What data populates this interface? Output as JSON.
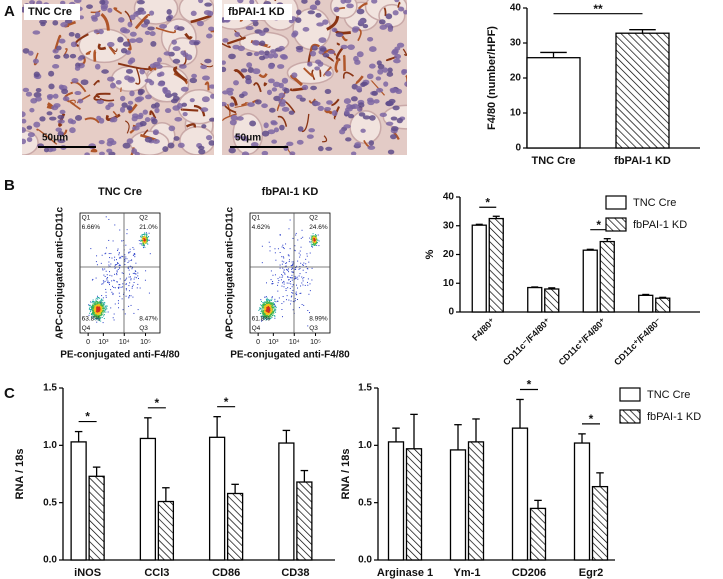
{
  "panels": [
    "A",
    "B",
    "C"
  ],
  "micrographs": [
    {
      "label": "TNC Cre",
      "scale_bar": "50μm"
    },
    {
      "label": "fbPAI-1 KD",
      "scale_bar": "50μm"
    }
  ],
  "chart_data": [
    {
      "type": "bar",
      "ylabel": "F4/80 (number/HPF)",
      "categories": [
        "TNC Cre",
        "fbPAI-1 KD"
      ],
      "values": [
        25.8,
        32.8
      ],
      "errors": [
        1.5,
        1.0
      ],
      "fills": [
        "#ffffff",
        "hatch"
      ],
      "ylim": [
        0,
        40
      ],
      "yticks": [
        0,
        10,
        20,
        30,
        40
      ],
      "significance": [
        {
          "text": "**",
          "categories": [
            "TNC Cre",
            "fbPAI-1 KD"
          ]
        }
      ]
    },
    {
      "type": "flow-density",
      "title": "TNC Cre",
      "xlabel": "PE-conjugated anti-F4/80",
      "ylabel": "APC-conjugated anti-CD11c",
      "xscale": "biexponential",
      "xlim": [
        -400,
        480000
      ],
      "xticks": [
        0,
        {
          "value": 1000,
          "label": "10³"
        },
        {
          "value": 10000,
          "label": "10⁴"
        },
        {
          "value": 100000,
          "label": "10⁵"
        }
      ],
      "quadrant_labels": [
        "Q1",
        "Q2",
        "Q3",
        "Q4"
      ],
      "values": [
        6.66,
        21.0,
        8.47,
        63.8
      ],
      "value_labels": [
        "6.66%",
        "21.0%",
        "8.47%",
        "63.8%"
      ]
    },
    {
      "type": "flow-density",
      "title": "fbPAI-1 KD",
      "xlabel": "PE-conjugated anti-F4/80",
      "ylabel": "APC-conjugated anti-CD11c",
      "xscale": "biexponential",
      "xlim": [
        -400,
        480000
      ],
      "xticks": [
        0,
        {
          "value": 1000,
          "label": "10³"
        },
        {
          "value": 10000,
          "label": "10⁴"
        },
        {
          "value": 100000,
          "label": "10⁵"
        }
      ],
      "quadrant_labels": [
        "Q1",
        "Q2",
        "Q3",
        "Q4"
      ],
      "values": [
        4.62,
        24.6,
        8.99,
        61.8
      ],
      "value_labels": [
        "4.62%",
        "24.6%",
        "8.99%",
        "61.8%"
      ]
    },
    {
      "type": "grouped-bar",
      "ylabel": "%",
      "categories": [
        "F4/80⁺",
        "CD11c⁻/F4/80⁺",
        "CD11c⁺/F4/80⁺",
        "CD11c⁺/F4/80⁻"
      ],
      "series": [
        {
          "name": "TNC Cre",
          "fill": "#ffffff",
          "values": [
            30.2,
            8.5,
            21.5,
            5.8
          ],
          "errors": [
            0.3,
            0.2,
            0.3,
            0.3
          ]
        },
        {
          "name": "fbPAI-1 KD",
          "fill": "hatch",
          "values": [
            32.5,
            8.0,
            24.5,
            4.8
          ],
          "errors": [
            0.8,
            0.4,
            1.0,
            0.3
          ]
        }
      ],
      "ylim": [
        0,
        40
      ],
      "yticks": [
        0,
        10,
        20,
        30,
        40
      ],
      "xtick_rotation": 45,
      "legend": "upper right",
      "significance": [
        {
          "text": "*",
          "category": "F4/80⁺"
        },
        {
          "text": "*",
          "category": "CD11c⁺/F4/80⁺"
        }
      ]
    },
    {
      "type": "grouped-bar",
      "ylabel": "RNA / 18s",
      "categories": [
        "iNOS",
        "CCl3",
        "CD86",
        "CD38"
      ],
      "series": [
        {
          "name": "TNC Cre",
          "fill": "#ffffff",
          "values": [
            1.03,
            1.06,
            1.07,
            1.02
          ],
          "errors": [
            0.09,
            0.18,
            0.18,
            0.11
          ]
        },
        {
          "name": "fbPAI-1 KD",
          "fill": "hatch",
          "values": [
            0.73,
            0.51,
            0.58,
            0.68
          ],
          "errors": [
            0.08,
            0.12,
            0.08,
            0.1
          ]
        }
      ],
      "ylim": [
        0,
        1.5
      ],
      "yticks": [
        {
          "value": 0,
          "label": "0.0"
        },
        0.5,
        {
          "value": 1,
          "label": "1.0"
        },
        1.5
      ],
      "significance": [
        {
          "text": "*",
          "category": "iNOS"
        },
        {
          "text": "*",
          "category": "CCl3"
        },
        {
          "text": "*",
          "category": "CD86"
        }
      ]
    },
    {
      "type": "grouped-bar",
      "ylabel": "RNA / 18s",
      "categories": [
        "Arginase 1",
        "Ym-1",
        "CD206",
        "Egr2"
      ],
      "series": [
        {
          "name": "TNC Cre",
          "fill": "#ffffff",
          "values": [
            1.03,
            0.96,
            1.15,
            1.02
          ],
          "errors": [
            0.12,
            0.22,
            0.25,
            0.08
          ]
        },
        {
          "name": "fbPAI-1 KD",
          "fill": "hatch",
          "values": [
            0.97,
            1.03,
            0.45,
            0.64
          ],
          "errors": [
            0.3,
            0.2,
            0.07,
            0.12
          ]
        }
      ],
      "ylim": [
        0,
        1.5
      ],
      "yticks": [
        {
          "value": 0,
          "label": "0.0"
        },
        0.5,
        {
          "value": 1,
          "label": "1.0"
        },
        1.5
      ],
      "legend": "upper right",
      "significance": [
        {
          "text": "*",
          "category": "CD206"
        },
        {
          "text": "*",
          "category": "Egr2"
        }
      ]
    }
  ]
}
